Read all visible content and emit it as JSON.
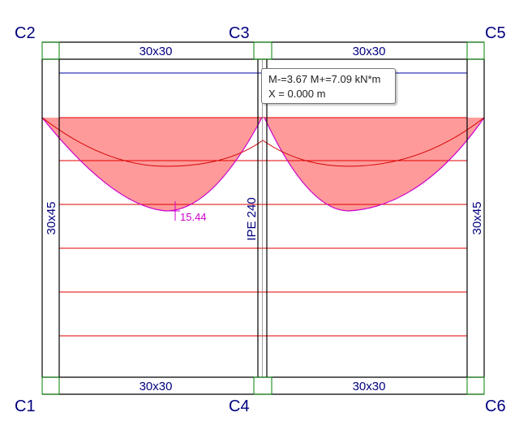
{
  "columns": {
    "c1": "C1",
    "c2": "C2",
    "c3": "C3",
    "c4": "C4",
    "c5": "C5",
    "c6": "C6"
  },
  "beams": {
    "top_left": "30x30",
    "top_right": "30x30",
    "bottom_left": "30x30",
    "bottom_right": "30x30",
    "left": "30x45",
    "right": "30x45",
    "middle": "IPE 240"
  },
  "diagram": {
    "max_value": "15.44"
  },
  "tooltip": {
    "line1": "M-=3.67 M+=7.09 kN*m",
    "line2": "X = 0.000 m"
  },
  "colors": {
    "outline": "#000000",
    "column_box": "#008000",
    "label": "#00007f",
    "moment_fill": "#ff9a9a",
    "moment_line": "#d40000",
    "envelope": "#cc00cc",
    "slab_strip": "#e00000",
    "top_strip": "#0000aa"
  }
}
